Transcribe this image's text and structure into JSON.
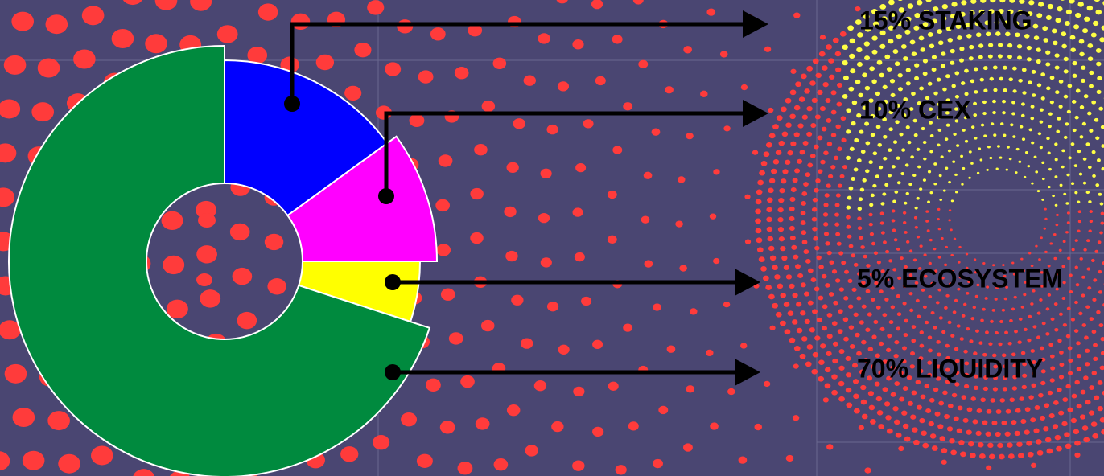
{
  "chart_data": {
    "type": "donut",
    "values": [
      15,
      10,
      5,
      70
    ],
    "value_labels": [
      "15% STAKING",
      "10% CEX",
      "5% ECOSYSTEM",
      "70% LIQUIDITY"
    ],
    "colors": [
      "#0000ff",
      "#ff00ff",
      "#ffff00",
      "#008a3e"
    ]
  }
}
